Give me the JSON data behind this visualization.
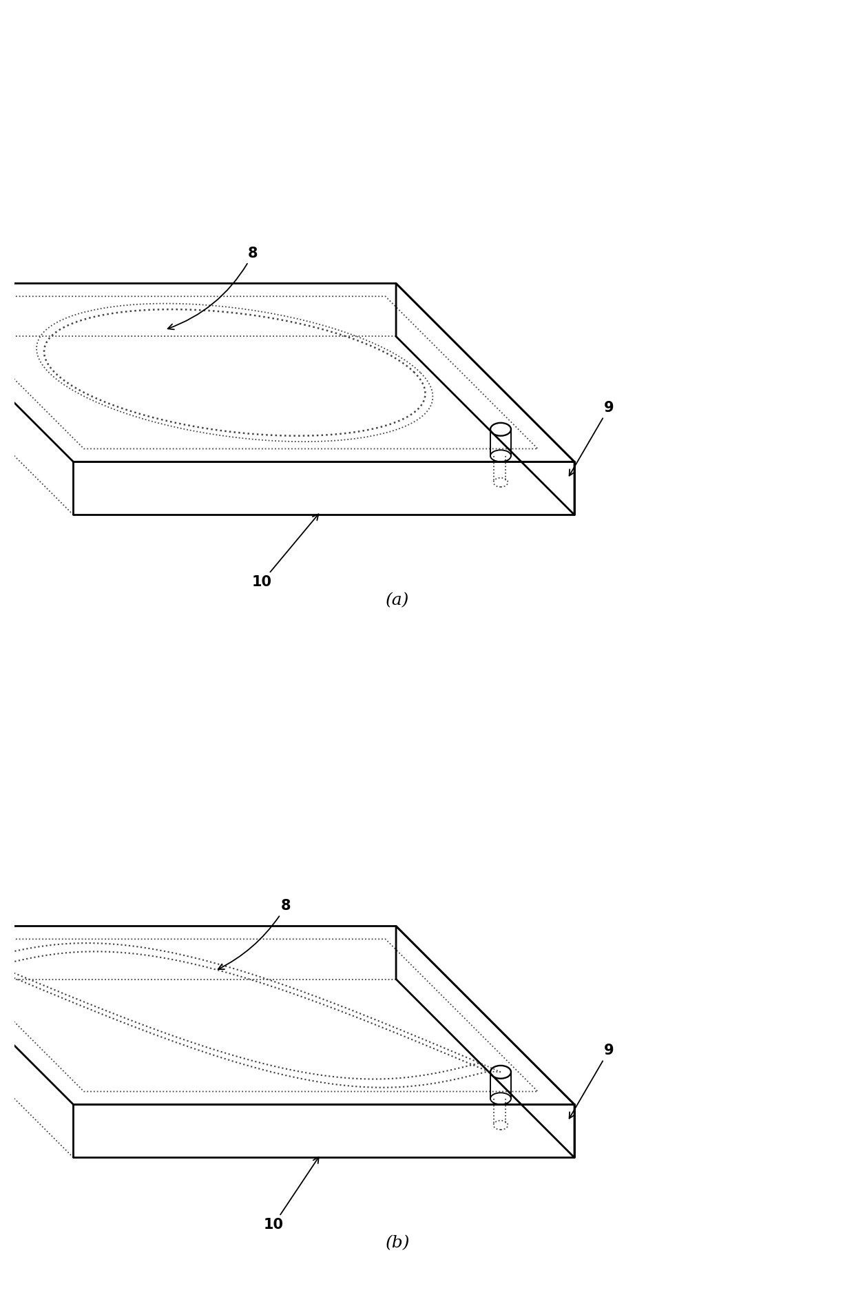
{
  "bg_color": "#ffffff",
  "line_color": "#000000",
  "dotted_color": "#444444",
  "label_a": "(a)",
  "label_b": "(b)",
  "label_8": "8",
  "label_9": "9",
  "label_10": "10",
  "fig_width": 12.4,
  "fig_height": 18.8,
  "lw_solid": 2.0,
  "lw_dotted": 1.3,
  "font_size_label": 15,
  "font_size_caption": 18
}
